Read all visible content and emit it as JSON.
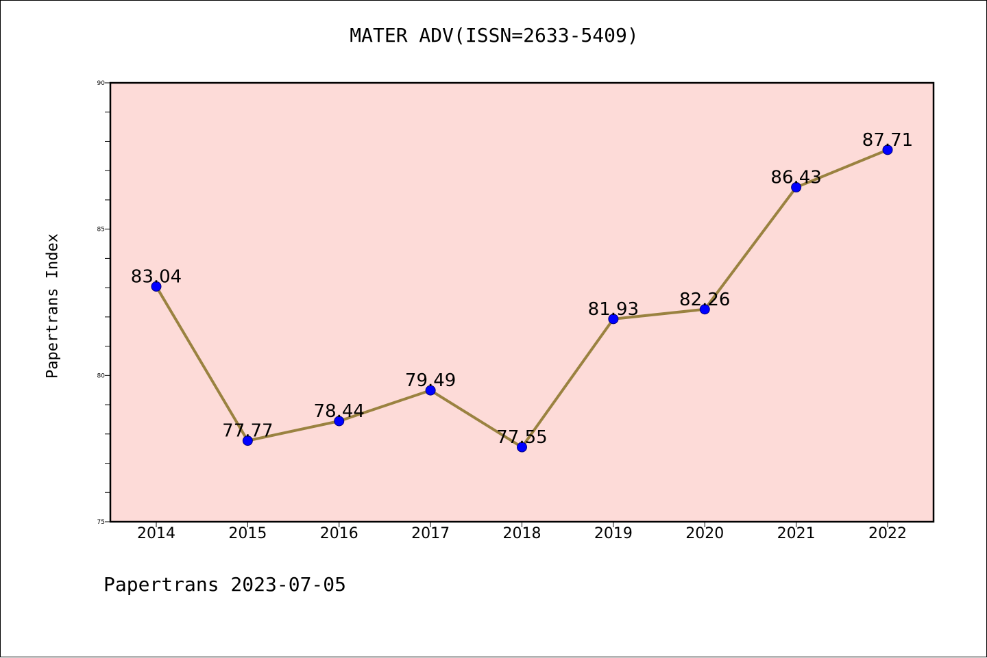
{
  "chart_data": {
    "type": "line",
    "title": "MATER ADV(ISSN=2633-5409)",
    "xlabel": "",
    "ylabel": "Papertrans Index",
    "categories": [
      "2014",
      "2015",
      "2016",
      "2017",
      "2018",
      "2019",
      "2020",
      "2021",
      "2022"
    ],
    "series": [
      {
        "values": [
          83.04,
          77.77,
          78.44,
          79.49,
          77.55,
          81.93,
          82.26,
          86.43,
          87.71
        ],
        "labels": [
          "83.04",
          "77.77",
          "78.44",
          "79.49",
          "77.55",
          "81.93",
          "82.26",
          "86.43",
          "87.71"
        ],
        "line_color": "#9a8240",
        "marker_color": "#0000ff"
      }
    ],
    "ylim": [
      75,
      90
    ],
    "yticks": [
      "75",
      "80",
      "85",
      "90"
    ],
    "grid": false,
    "legend": "none",
    "plot_background": "#fddbd8"
  },
  "footer": "Papertrans 2023-07-05"
}
